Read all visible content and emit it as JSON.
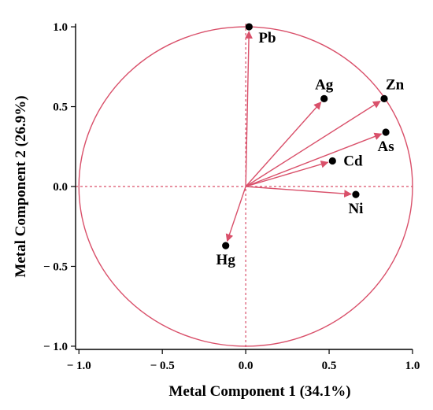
{
  "chart_data": {
    "type": "scatter",
    "xlabel": "Metal Component 1 (34.1%)",
    "ylabel": "Metal Component 2 (26.9%)",
    "xlim": [
      -1.02,
      1.0
    ],
    "ylim": [
      -1.02,
      1.02
    ],
    "xticks": [
      {
        "value": -1.0,
        "label": "− 1.0"
      },
      {
        "value": -0.5,
        "label": "− 0.5"
      },
      {
        "value": 0.0,
        "label": "0.0"
      },
      {
        "value": 0.5,
        "label": "0.5"
      },
      {
        "value": 1.0,
        "label": "1.0"
      }
    ],
    "yticks": [
      {
        "value": 1.0,
        "label": "1.0"
      },
      {
        "value": 0.5,
        "label": "0.5"
      },
      {
        "value": 0.0,
        "label": "0.0"
      },
      {
        "value": -0.5,
        "label": "− 0.5"
      },
      {
        "value": -1.0,
        "label": "− 1.0"
      }
    ],
    "unit_circle": true,
    "reference_lines": [
      0.0
    ],
    "points": [
      {
        "label": "Pb",
        "x": 0.02,
        "y": 1.0,
        "label_pos": "below-right"
      },
      {
        "label": "Ag",
        "x": 0.47,
        "y": 0.55,
        "label_pos": "above"
      },
      {
        "label": "Zn",
        "x": 0.83,
        "y": 0.55,
        "label_pos": "above-right"
      },
      {
        "label": "As",
        "x": 0.84,
        "y": 0.34,
        "label_pos": "below"
      },
      {
        "label": "Cd",
        "x": 0.52,
        "y": 0.16,
        "label_pos": "right"
      },
      {
        "label": "Ni",
        "x": 0.66,
        "y": -0.05,
        "label_pos": "below"
      },
      {
        "label": "Hg",
        "x": -0.12,
        "y": -0.37,
        "label_pos": "below"
      }
    ],
    "colors": {
      "vector": "#d9506a",
      "circle": "#d9506a",
      "point": "#000000",
      "axes": "#000000"
    }
  }
}
